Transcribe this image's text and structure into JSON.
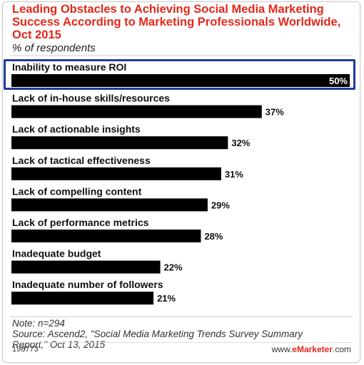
{
  "chart_data": {
    "type": "bar",
    "orientation": "horizontal",
    "title": "Leading Obstacles to Achieving Social Media Marketing Success According to Marketing Professionals Worldwide, Oct 2015",
    "subtitle": "% of respondents",
    "categories": [
      "Inability to measure ROI",
      "Lack of in-house skills/resources",
      "Lack of actionable insights",
      "Lack of tactical effectiveness",
      "Lack of compelling content",
      "Lack of performance metrics",
      "Inadequate budget",
      "Inadequate number of followers"
    ],
    "values": [
      50,
      37,
      32,
      31,
      29,
      28,
      22,
      21
    ],
    "value_suffix": "%",
    "xlim": [
      0,
      50
    ],
    "grid": false,
    "highlighted_category": "Inability to measure ROI",
    "colors": {
      "bar": "#000000",
      "highlight_border": "#1f3c9c",
      "title": "#e4281a"
    }
  },
  "footer": {
    "note": "Note: n=294",
    "source_line1": "Source: Ascend2, \"Social Media Marketing Trends Survey Summary",
    "source_line2": "Report,\" Oct 13, 2015",
    "chart_id": "198773",
    "logo_prefix": "www.",
    "logo_brand": "eMarketer",
    "logo_suffix": ".com"
  }
}
